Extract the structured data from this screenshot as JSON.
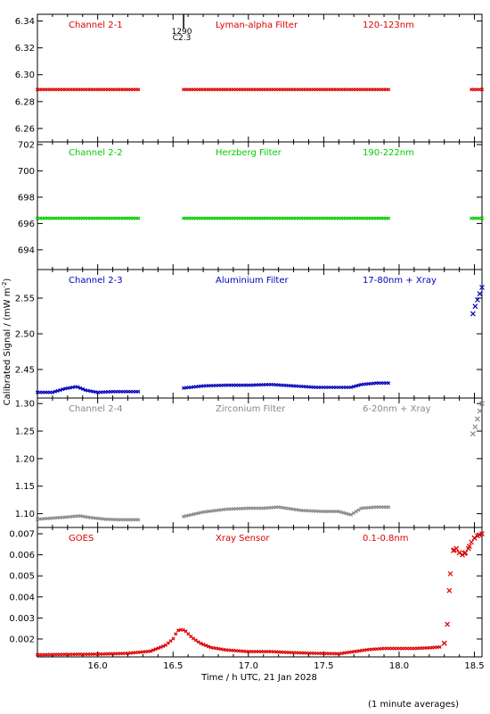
{
  "figure": {
    "ylabel": "Calibrated Signal / (mW m",
    "ylabel_sup": "-2",
    "ylabel_close": ")",
    "xlabel": "Time / h UTC, 21 Jan 2028",
    "footnote": "(1 minute averages)",
    "x_ticks": [
      "16.0",
      "16.5",
      "17.0",
      "17.5",
      "18.0",
      "18.5"
    ]
  },
  "colors": {
    "red": "#dd0000",
    "green": "#00cc00",
    "blue": "#0000bb",
    "gray": "#888888",
    "axis": "#000000"
  },
  "flare_marker": {
    "x": 16.57,
    "labels": [
      "1290",
      "C2.3"
    ]
  },
  "chart_data": [
    {
      "type": "scatter",
      "channel": "Channel 2-1",
      "filter": "Lyman-alpha Filter",
      "band": "120-123nm",
      "color": "#dd0000",
      "xlim": [
        15.6,
        18.55
      ],
      "ylim": [
        6.25,
        6.345
      ],
      "y_ticks": [
        "6.26",
        "6.28",
        "6.30",
        "6.32",
        "6.34"
      ],
      "segments": [
        {
          "x": [
            15.6,
            16.27
          ],
          "y": [
            6.289,
            6.289
          ]
        },
        {
          "x": [
            16.57,
            17.93
          ],
          "y": [
            6.289,
            6.289
          ]
        },
        {
          "x": [
            18.48,
            18.55
          ],
          "y": [
            6.289,
            6.289
          ]
        }
      ]
    },
    {
      "type": "scatter",
      "channel": "Channel 2-2",
      "filter": "Herzberg Filter",
      "band": "190-222nm",
      "color": "#00cc00",
      "xlim": [
        15.6,
        18.55
      ],
      "ylim": [
        692.5,
        702.2
      ],
      "y_ticks": [
        "694",
        "696",
        "698",
        "700",
        "702"
      ],
      "segments": [
        {
          "x": [
            15.6,
            16.27
          ],
          "y": [
            696.4,
            696.4
          ]
        },
        {
          "x": [
            16.57,
            17.93
          ],
          "y": [
            696.4,
            696.4
          ]
        },
        {
          "x": [
            18.48,
            18.55
          ],
          "y": [
            696.4,
            696.4
          ]
        }
      ]
    },
    {
      "type": "scatter",
      "channel": "Channel 2-3",
      "filter": "Aluminium Filter",
      "band": "17-80nm + Xray",
      "color": "#0000bb",
      "xlim": [
        15.6,
        18.55
      ],
      "ylim": [
        2.41,
        2.59
      ],
      "y_ticks": [
        "2.45",
        "2.50",
        "2.55"
      ],
      "segments": [
        {
          "x": [
            15.6,
            15.7,
            15.78,
            15.86,
            15.92,
            16.0,
            16.1,
            16.2,
            16.27
          ],
          "y": [
            2.418,
            2.418,
            2.423,
            2.426,
            2.421,
            2.418,
            2.419,
            2.419,
            2.419
          ]
        },
        {
          "x": [
            16.57,
            16.7,
            16.85,
            17.0,
            17.15,
            17.3,
            17.45,
            17.6,
            17.68,
            17.75,
            17.85,
            17.93
          ],
          "y": [
            2.424,
            2.427,
            2.428,
            2.428,
            2.429,
            2.427,
            2.425,
            2.425,
            2.425,
            2.429,
            2.431,
            2.431
          ]
        },
        {
          "x": [
            18.49,
            18.51,
            18.53,
            18.55
          ],
          "y": [
            2.528,
            2.542,
            2.553,
            2.565
          ]
        }
      ]
    },
    {
      "type": "scatter",
      "channel": "Channel 2-4",
      "filter": "Zirconium Filter",
      "band": "6-20nm + Xray",
      "color": "#888888",
      "xlim": [
        15.6,
        18.55
      ],
      "ylim": [
        1.075,
        1.31
      ],
      "y_ticks": [
        "1.10",
        "1.15",
        "1.20",
        "1.25",
        "1.30"
      ],
      "segments": [
        {
          "x": [
            15.6,
            15.7,
            15.8,
            15.88,
            15.95,
            16.05,
            16.15,
            16.27
          ],
          "y": [
            1.09,
            1.092,
            1.094,
            1.096,
            1.093,
            1.09,
            1.089,
            1.089
          ]
        },
        {
          "x": [
            16.57,
            16.7,
            16.85,
            17.0,
            17.1,
            17.2,
            17.35,
            17.5,
            17.6,
            17.68,
            17.75,
            17.85,
            17.93
          ],
          "y": [
            1.095,
            1.103,
            1.108,
            1.11,
            1.11,
            1.112,
            1.106,
            1.104,
            1.104,
            1.098,
            1.11,
            1.112,
            1.112
          ]
        },
        {
          "x": [
            18.49,
            18.51,
            18.53,
            18.55
          ],
          "y": [
            1.245,
            1.262,
            1.282,
            1.3
          ]
        }
      ]
    },
    {
      "type": "scatter",
      "channel": "GOES",
      "filter": "Xray Sensor",
      "band": "0.1-0.8nm",
      "color": "#dd0000",
      "xlim": [
        15.6,
        18.55
      ],
      "ylim": [
        0.00115,
        0.0073
      ],
      "y_ticks": [
        "0.002",
        "0.003",
        "0.004",
        "0.005",
        "0.006",
        "0.007"
      ],
      "segments": [
        {
          "x": [
            15.6,
            15.8,
            16.0,
            16.2,
            16.35,
            16.45,
            16.5,
            16.53,
            16.56,
            16.58,
            16.62,
            16.68,
            16.75,
            16.85,
            17.0,
            17.15,
            17.3,
            17.45,
            17.6,
            17.7,
            17.8,
            17.9,
            18.0,
            18.1,
            18.2,
            18.27
          ],
          "y": [
            0.00125,
            0.00127,
            0.00128,
            0.00132,
            0.00142,
            0.0017,
            0.002,
            0.0024,
            0.00245,
            0.0024,
            0.0021,
            0.0018,
            0.0016,
            0.00148,
            0.0014,
            0.0014,
            0.00135,
            0.00132,
            0.0013,
            0.0014,
            0.0015,
            0.00155,
            0.00155,
            0.00155,
            0.00158,
            0.00162
          ]
        },
        {
          "x": [
            18.3,
            18.32,
            18.34,
            18.36,
            18.38,
            18.4,
            18.42,
            18.44,
            18.46,
            18.48,
            18.5,
            18.52,
            18.55
          ],
          "y": [
            0.0018,
            0.0027,
            0.0051,
            0.0062,
            0.0063,
            0.0061,
            0.006,
            0.0061,
            0.0063,
            0.0066,
            0.0068,
            0.0069,
            0.007
          ]
        }
      ]
    }
  ]
}
